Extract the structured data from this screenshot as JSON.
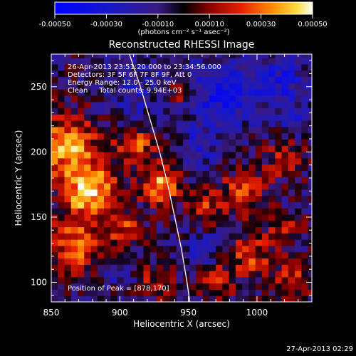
{
  "chart_data": {
    "type": "heatmap",
    "title": "Reconstructed RHESSI Image",
    "xlabel": "Heliocentric X (arcsec)",
    "ylabel": "Heliocentric Y (arcsec)",
    "xlim": [
      850,
      1040
    ],
    "ylim": [
      85,
      275
    ],
    "x_ticks": [
      850,
      900,
      950,
      1000
    ],
    "y_ticks": [
      100,
      150,
      200,
      250
    ],
    "x_tick_labels": [
      "850",
      "900",
      "950",
      "1000"
    ],
    "y_tick_labels": [
      "100",
      "150",
      "200",
      "250"
    ],
    "grid": false,
    "colorbar": {
      "colormap": "red-temperature",
      "range": [
        -0.0005,
        0.0005
      ],
      "ticks": [
        -0.0005,
        -0.0003,
        -0.0001,
        0.0001,
        0.0003,
        0.0005
      ],
      "tick_labels": [
        "-0.00050",
        "-0.00030",
        "-0.00010",
        "0.00010",
        "0.00030",
        "0.00050"
      ],
      "units_label": "(photons cm⁻² s⁻¹ asec⁻²)"
    },
    "annotations": [
      "26-Apr-2013 23:51:20.000 to 23:34:56.000",
      "Detectors: 3F 5F 6F 7F 8F 9F, Att 0",
      "Energy Range: 12.0 - 25.0 keV",
      "Clean     Total counts: 9.94E+03",
      "Position of Peak = [878,170]"
    ],
    "peak_position": [
      878,
      170
    ],
    "limb": [
      [
        907,
        275
      ],
      [
        915,
        250
      ],
      [
        922,
        225
      ],
      [
        929,
        200
      ],
      [
        935,
        175
      ],
      [
        940,
        150
      ],
      [
        945,
        125
      ],
      [
        949,
        100
      ],
      [
        951,
        85
      ]
    ],
    "hotspots": [
      {
        "x": 878,
        "y": 170,
        "amp": 1.0,
        "sigma": 14
      },
      {
        "x": 862,
        "y": 205,
        "amp": 0.85,
        "sigma": 16
      },
      {
        "x": 868,
        "y": 130,
        "amp": 0.7,
        "sigma": 14
      },
      {
        "x": 930,
        "y": 175,
        "amp": 0.85,
        "sigma": 10
      },
      {
        "x": 912,
        "y": 205,
        "amp": 0.6,
        "sigma": 10
      },
      {
        "x": 944,
        "y": 245,
        "amp": 0.55,
        "sigma": 6
      },
      {
        "x": 1020,
        "y": 195,
        "amp": 0.45,
        "sigma": 10
      },
      {
        "x": 990,
        "y": 170,
        "amp": 0.5,
        "sigma": 12
      },
      {
        "x": 962,
        "y": 160,
        "amp": 0.55,
        "sigma": 8
      },
      {
        "x": 995,
        "y": 120,
        "amp": 0.5,
        "sigma": 12
      },
      {
        "x": 970,
        "y": 100,
        "amp": 0.6,
        "sigma": 8
      },
      {
        "x": 1025,
        "y": 100,
        "amp": 0.5,
        "sigma": 10
      },
      {
        "x": 1020,
        "y": 140,
        "amp": 0.45,
        "sigma": 8
      },
      {
        "x": 905,
        "y": 140,
        "amp": 0.5,
        "sigma": 9
      },
      {
        "x": 925,
        "y": 100,
        "amp": 0.35,
        "sigma": 10
      }
    ],
    "coldspots": [
      {
        "x": 975,
        "y": 245,
        "amp": -0.55,
        "sigma": 18
      },
      {
        "x": 1015,
        "y": 255,
        "amp": -0.45,
        "sigma": 14
      },
      {
        "x": 910,
        "y": 250,
        "amp": -0.25,
        "sigma": 18
      },
      {
        "x": 958,
        "y": 205,
        "amp": -0.35,
        "sigma": 10
      },
      {
        "x": 960,
        "y": 125,
        "amp": -0.35,
        "sigma": 8
      },
      {
        "x": 900,
        "y": 110,
        "amp": -0.3,
        "sigma": 8
      },
      {
        "x": 1030,
        "y": 225,
        "amp": -0.3,
        "sigma": 8
      }
    ]
  },
  "footer": {
    "timestamp": "27-Apr-2013 02:29"
  }
}
